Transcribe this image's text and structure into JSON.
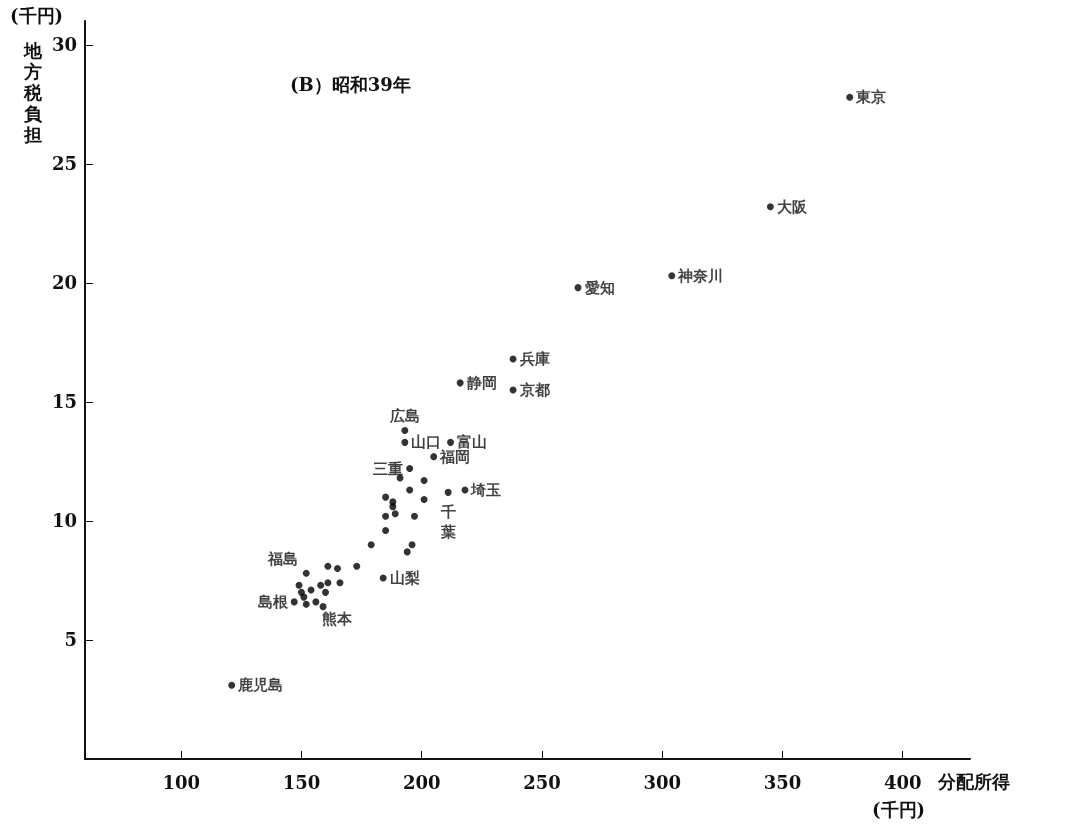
{
  "chart_data": {
    "type": "scatter",
    "title": "(B）昭和39年",
    "xlabel": "分配所得",
    "ylabel": "地方税負担",
    "annotations": [
      "(千円)",
      "(千円)"
    ],
    "xlim": [
      60,
      428
    ],
    "ylim": [
      0,
      31
    ],
    "xticks": [
      100,
      150,
      200,
      250,
      300,
      350,
      400
    ],
    "yticks": [
      5,
      10,
      15,
      20,
      25,
      30
    ],
    "grid": false,
    "marker": "circle",
    "series": [
      {
        "color": "#000000",
        "x": [
          378,
          345,
          304,
          265,
          238,
          216,
          238,
          193,
          193,
          212,
          205,
          195,
          211,
          218,
          152,
          184,
          147,
          159,
          121,
          191,
          201,
          195,
          185,
          201,
          188,
          188,
          189,
          185,
          197,
          185,
          179,
          196,
          194,
          161,
          165,
          173,
          166,
          158,
          161,
          149,
          154,
          150,
          160,
          151,
          152,
          156
        ],
        "values": [
          27.8,
          23.2,
          20.3,
          19.8,
          16.8,
          15.8,
          15.5,
          13.8,
          13.3,
          13.3,
          12.7,
          12.2,
          11.2,
          11.3,
          7.8,
          7.6,
          6.6,
          6.4,
          3.1,
          11.8,
          11.7,
          11.3,
          11.0,
          10.9,
          10.8,
          10.6,
          10.3,
          10.2,
          10.2,
          9.6,
          9.0,
          9.0,
          8.7,
          8.1,
          8.0,
          8.1,
          7.4,
          7.3,
          7.4,
          7.3,
          7.1,
          7.0,
          7.0,
          6.8,
          6.5,
          6.6
        ],
        "value_labels": [
          "東京",
          "大阪",
          "神奈川",
          "愛知",
          "兵庫",
          "静岡",
          "京都",
          "広島",
          "山口",
          "富山",
          "福岡",
          "三重",
          "千葉",
          "埼玉",
          "福島",
          "山梨",
          "島根",
          "熊本",
          "鹿児島",
          null,
          null,
          null,
          null,
          null,
          null,
          null,
          null,
          null,
          null,
          null,
          null,
          null,
          null,
          null,
          null,
          null,
          null,
          null,
          null,
          null,
          null,
          null,
          null,
          null,
          null,
          null
        ]
      }
    ]
  }
}
